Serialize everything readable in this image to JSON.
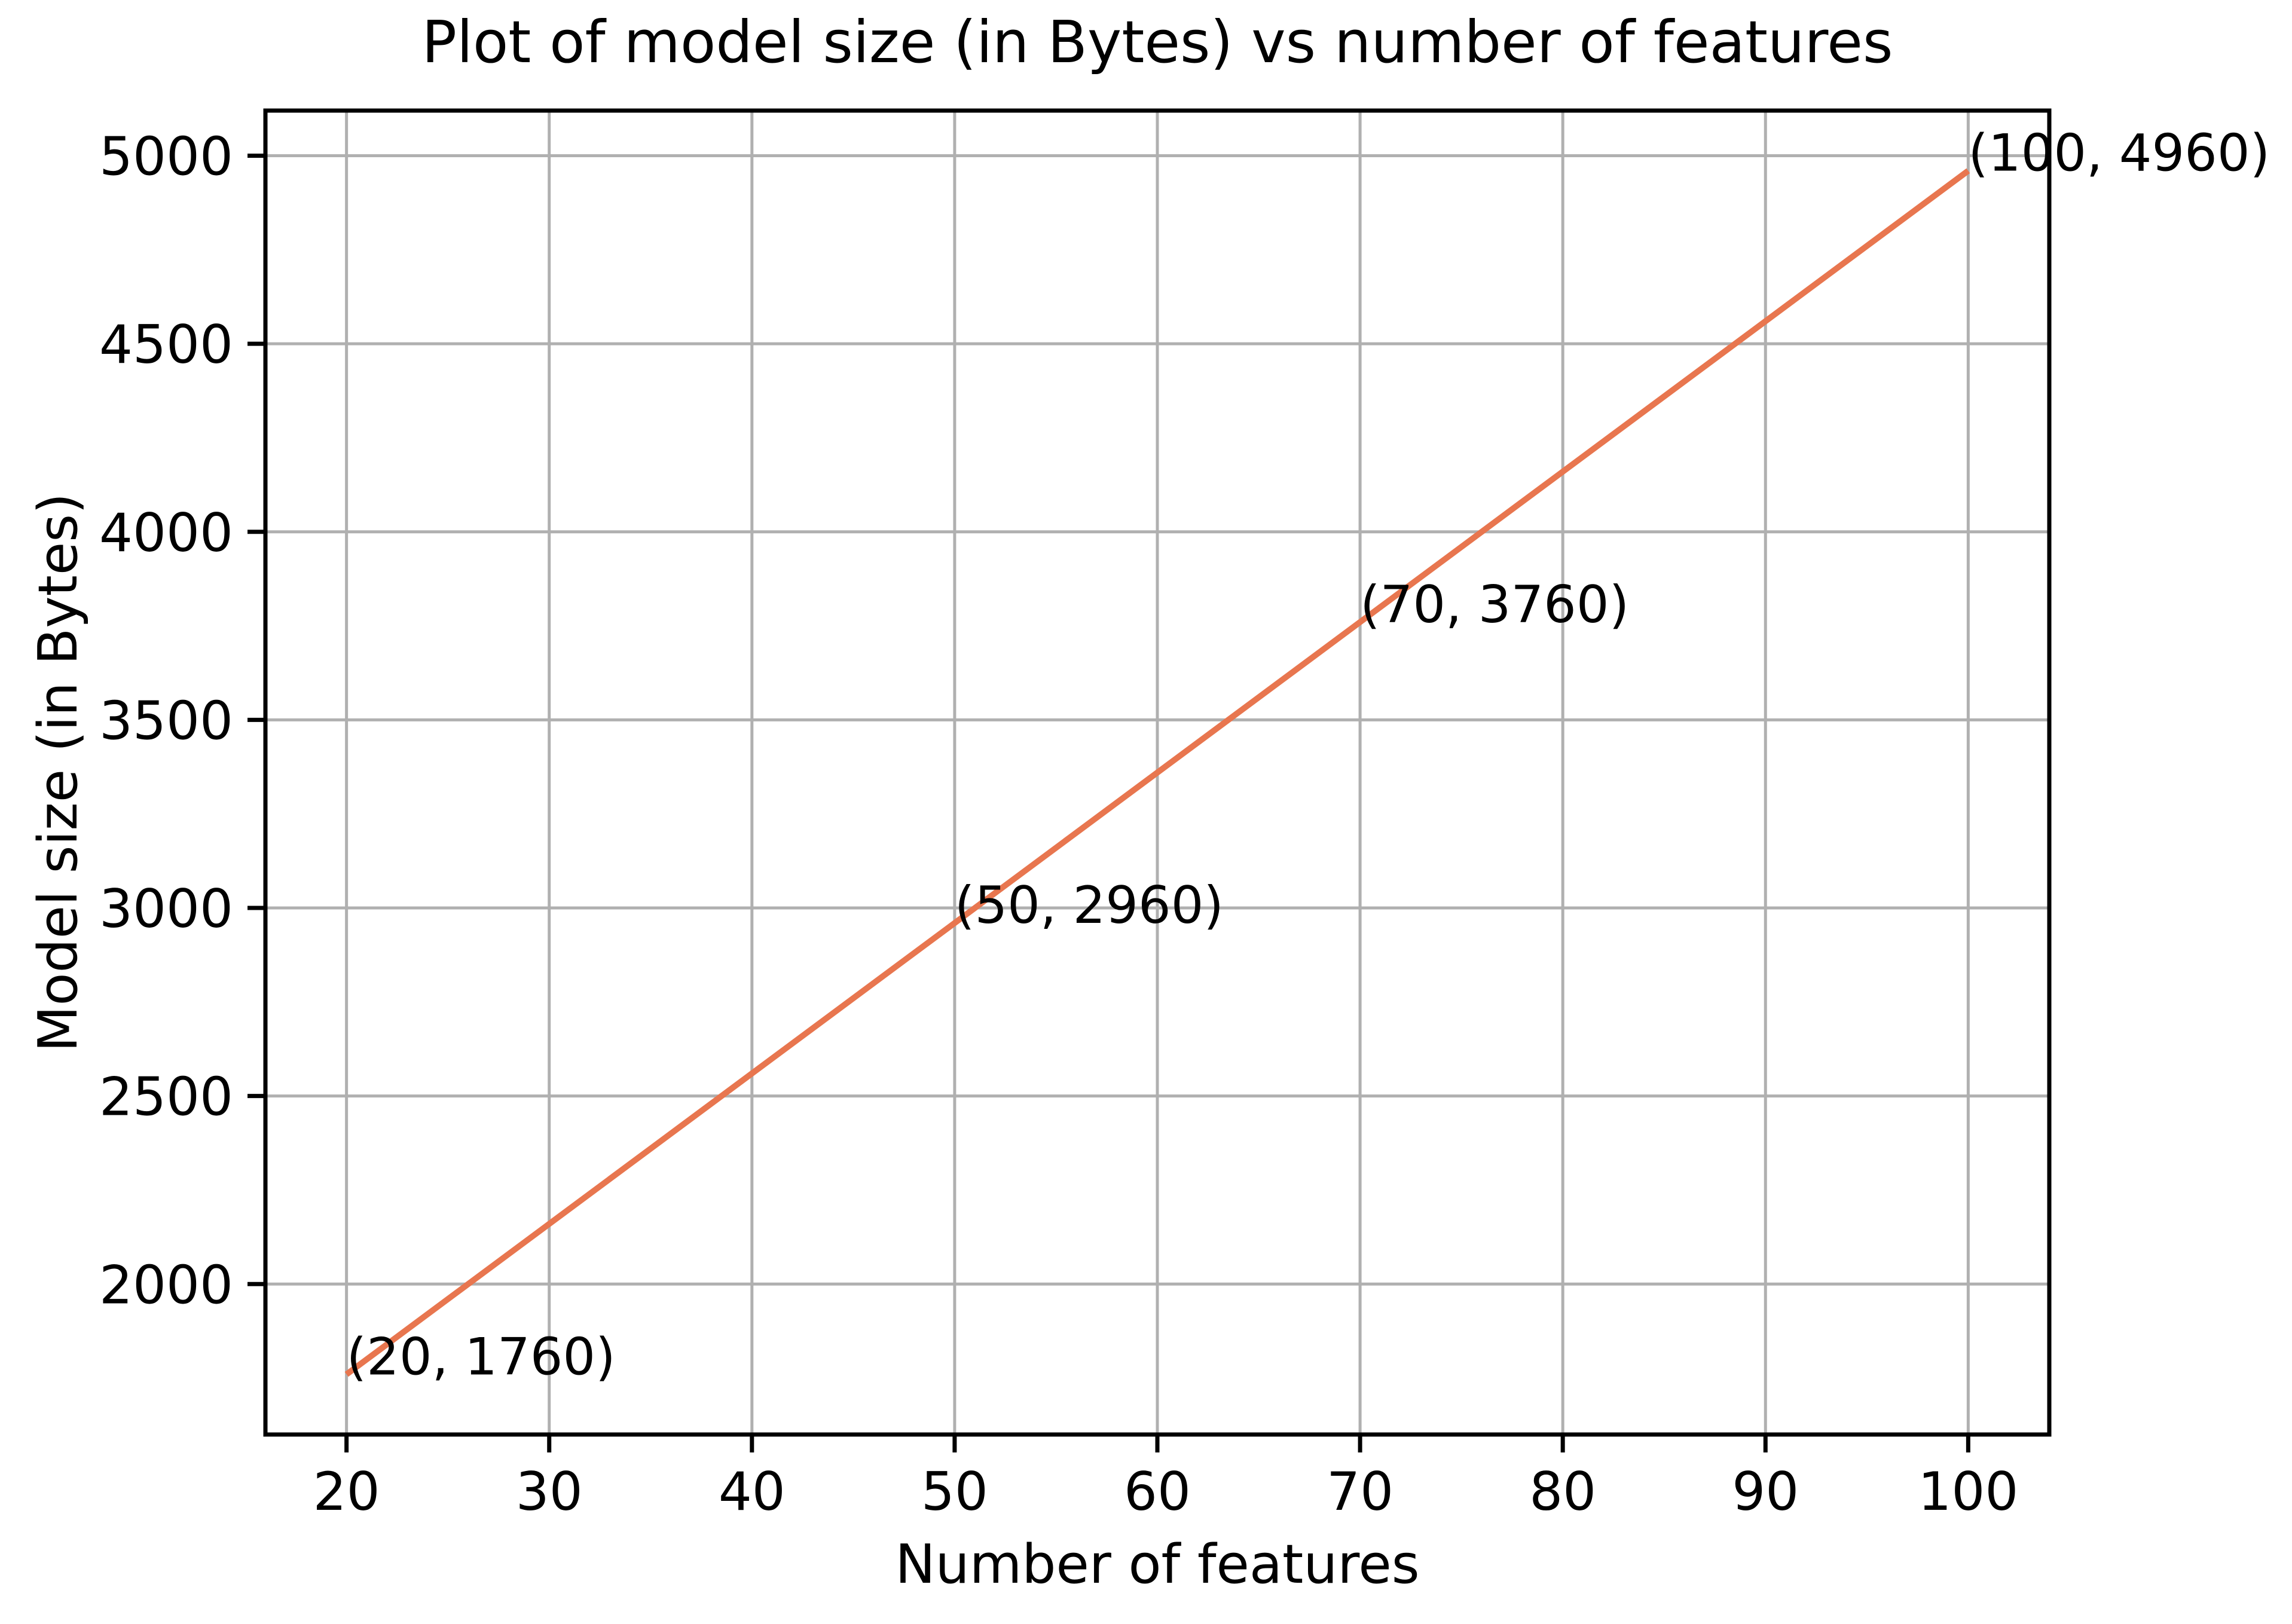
{
  "figure": {
    "background": "#ffffff",
    "text_color": "#000000",
    "spine_color": "#000000"
  },
  "chart_data": {
    "type": "line",
    "title": "Plot of model size (in Bytes) vs number of features",
    "xlabel": "Number of features",
    "ylabel": "Model size (in Bytes)",
    "x": [
      20,
      50,
      70,
      100
    ],
    "y": [
      1760,
      2960,
      3760,
      4960
    ],
    "series": [
      {
        "name": "model-size-line",
        "x": [
          20,
          50,
          70,
          100
        ],
        "values": [
          1760,
          2960,
          3760,
          4960
        ]
      }
    ],
    "annotations": [
      {
        "x": 20,
        "y": 1760,
        "label": "(20, 1760)"
      },
      {
        "x": 50,
        "y": 2960,
        "label": "(50, 2960)"
      },
      {
        "x": 70,
        "y": 3760,
        "label": "(70, 3760)"
      },
      {
        "x": 100,
        "y": 4960,
        "label": "(100, 4960)"
      }
    ],
    "xticks": [
      20,
      30,
      40,
      50,
      60,
      70,
      80,
      90,
      100
    ],
    "yticks": [
      2000,
      2500,
      3000,
      3500,
      4000,
      4500,
      5000
    ],
    "xlim": [
      16,
      104
    ],
    "ylim": [
      1600,
      5120
    ],
    "grid": true,
    "legend_position": "none",
    "line_color": "#E8764F",
    "grid_color": "#b0b0b0"
  }
}
